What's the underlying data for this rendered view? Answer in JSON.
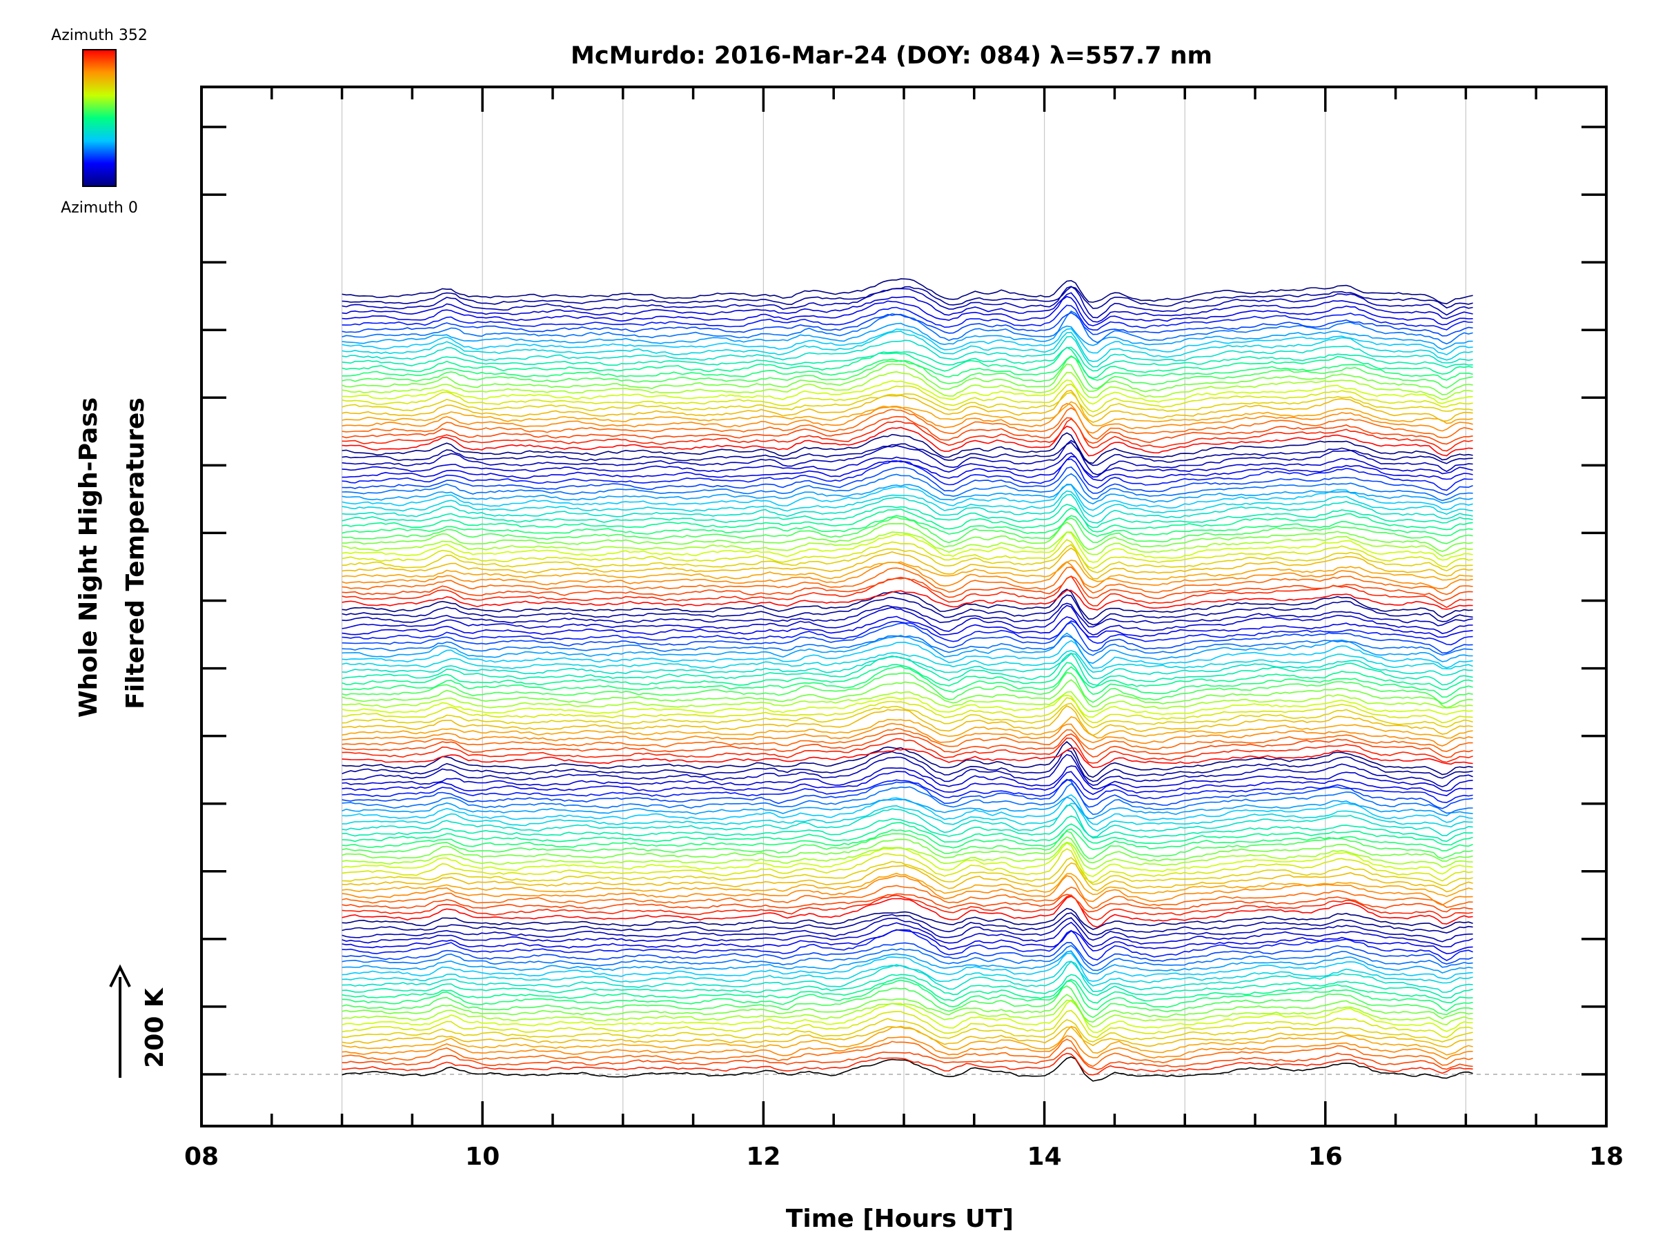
{
  "chart_data": {
    "type": "line",
    "title": "McMurdo: 2016-Mar-24 (DOY: 084) λ=557.7 nm",
    "xlabel": "Time [Hours UT]",
    "ylabel_lines": [
      "Whole Night High-Pass",
      "Filtered Temperatures"
    ],
    "xlim": [
      8,
      18
    ],
    "x_tick_labels": [
      "08",
      "10",
      "12",
      "14",
      "16",
      "18"
    ],
    "x_tick_values": [
      8,
      10,
      12,
      14,
      16,
      18
    ],
    "x_grid_lines": [
      9,
      10,
      11,
      12,
      13,
      14,
      15,
      16,
      17
    ],
    "data_x_range": [
      9.0,
      17.05
    ],
    "y_major_ticks": 15,
    "scale_bar_label": "200 K",
    "colorbar": {
      "top_label": "Azimuth 352",
      "bottom_label": "Azimuth 0",
      "colormap": "rainbow",
      "colors": [
        "#000080",
        "#0000ff",
        "#00c8ff",
        "#00ff80",
        "#c8ff00",
        "#ff9600",
        "#ff0000"
      ]
    },
    "series_count": 140,
    "series_spacing_k": 33,
    "series_description": "Stacked high-pass filtered temperature traces, one per azimuth (0 to 352 deg), offset vertically, colored by azimuth",
    "common_features": [
      {
        "time": 9.75,
        "amplitude_k": 40,
        "width_h": 0.07
      },
      {
        "time": 12.05,
        "amplitude_k": 30,
        "width_h": 0.08
      },
      {
        "time": 12.3,
        "amplitude_k": 25,
        "width_h": 0.08
      },
      {
        "time": 12.95,
        "amplitude_k": 95,
        "width_h": 0.18
      },
      {
        "time": 13.5,
        "amplitude_k": 30,
        "width_h": 0.07
      },
      {
        "time": 13.7,
        "amplitude_k": 25,
        "width_h": 0.06
      },
      {
        "time": 14.18,
        "amplitude_k": 110,
        "width_h": 0.06
      },
      {
        "time": 14.5,
        "amplitude_k": 20,
        "width_h": 0.06
      },
      {
        "time": 15.7,
        "amplitude_k": 35,
        "width_h": 0.35
      },
      {
        "time": 16.15,
        "amplitude_k": 45,
        "width_h": 0.12
      },
      {
        "time": 12.1,
        "amplitude_k": -25,
        "width_h": 0.1
      },
      {
        "time": 13.3,
        "amplitude_k": -30,
        "width_h": 0.08
      },
      {
        "time": 14.35,
        "amplitude_k": -45,
        "width_h": 0.06
      },
      {
        "time": 14.8,
        "amplitude_k": -20,
        "width_h": 0.15
      },
      {
        "time": 16.85,
        "amplitude_k": -40,
        "width_h": 0.05
      }
    ]
  }
}
